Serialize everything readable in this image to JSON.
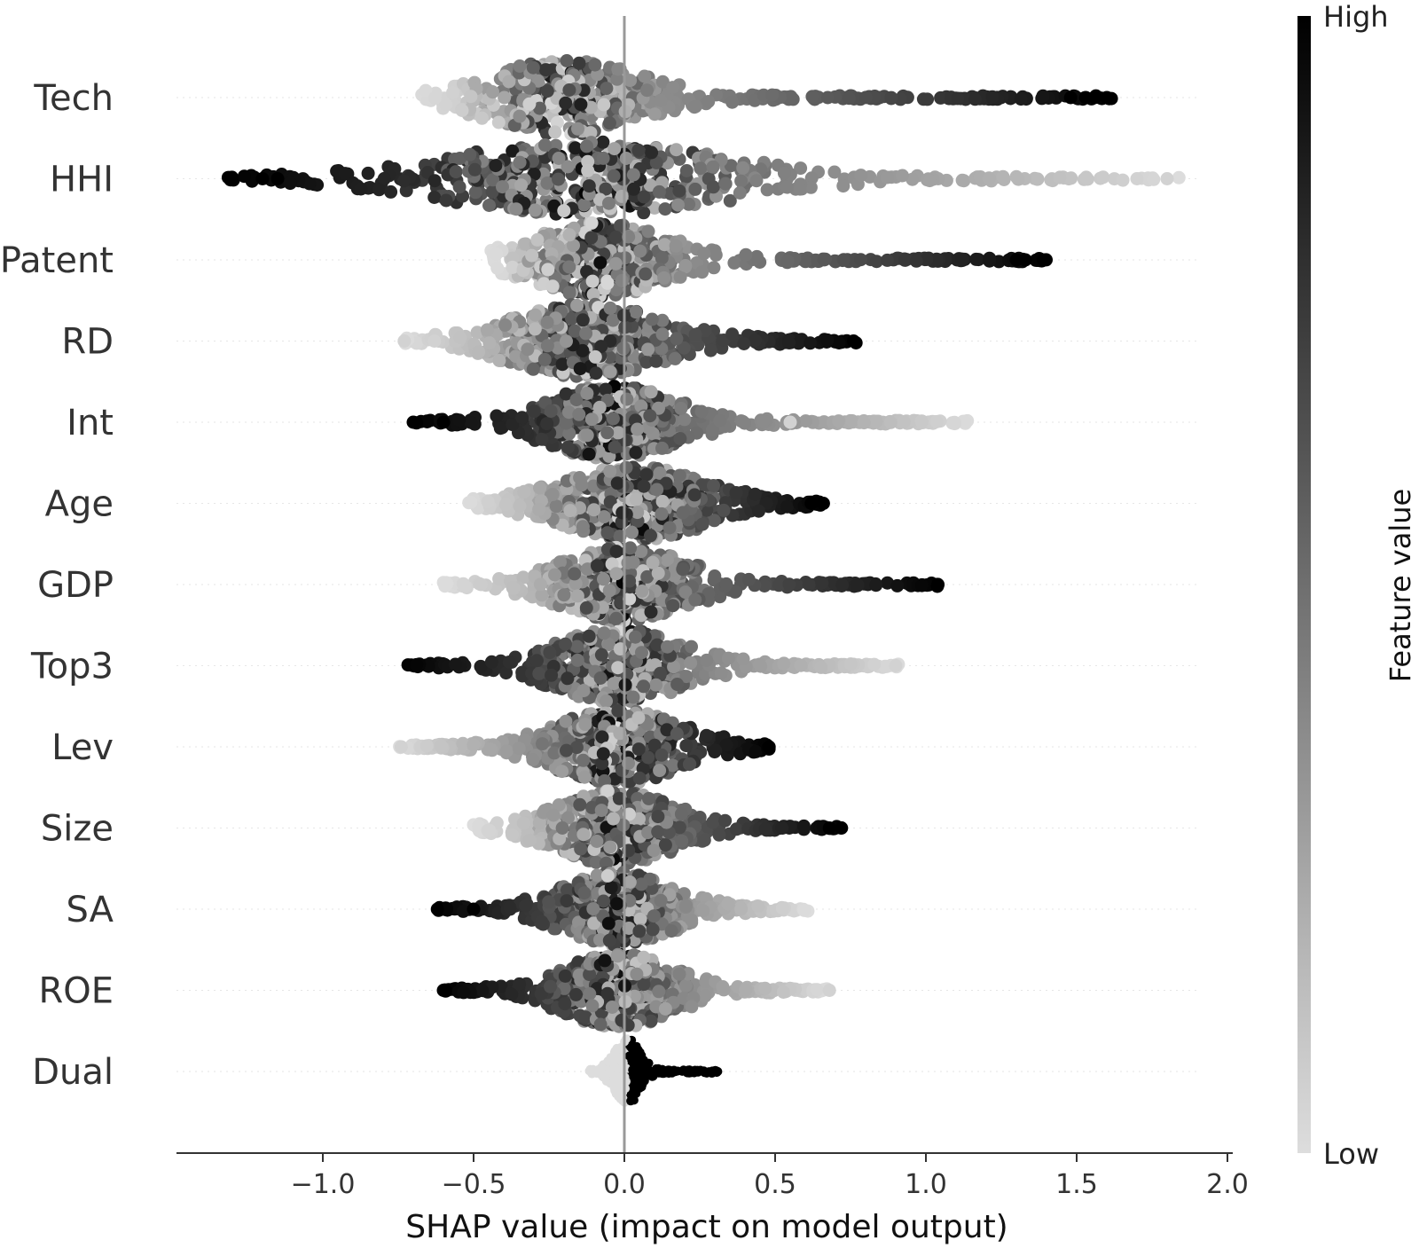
{
  "chart_data": {
    "type": "scatter",
    "subtype": "shap-beeswarm",
    "xlabel": "SHAP value (impact on model output)",
    "xlim": [
      -1.47,
      2.0
    ],
    "xticks": [
      -1.0,
      -0.5,
      0.0,
      0.5,
      1.0,
      1.5,
      2.0
    ],
    "xtick_labels": [
      "−1.0",
      "−0.5",
      "0.0",
      "0.5",
      "1.0",
      "1.5",
      "2.0"
    ],
    "colorbar": {
      "title": "Feature value",
      "high_label": "High",
      "low_label": "Low",
      "high_color": "#000000",
      "low_color": "#dddddd"
    },
    "features": [
      {
        "name": "Tech",
        "min": -0.7,
        "max": 1.62,
        "core": -0.2,
        "spread": 0.18,
        "lowTail": "left",
        "extremes": [
          1.48,
          1.53,
          1.56,
          1.6
        ]
      },
      {
        "name": "HHI",
        "min": -1.32,
        "max": 1.85,
        "core": -0.12,
        "spread": 0.32,
        "lowTail": "right",
        "extremes": [
          -1.15,
          -1.2,
          1.7,
          1.8
        ]
      },
      {
        "name": "Patent",
        "min": -0.45,
        "max": 1.4,
        "core": -0.08,
        "spread": 0.16,
        "lowTail": "left",
        "extremes": [
          1.3,
          1.33,
          1.39
        ]
      },
      {
        "name": "RD",
        "min": -0.73,
        "max": 0.77,
        "core": -0.12,
        "spread": 0.18,
        "lowTail": "left",
        "extremes": [
          -0.73,
          -0.63,
          0.76
        ]
      },
      {
        "name": "Int",
        "min": -0.7,
        "max": 1.15,
        "core": -0.04,
        "spread": 0.15,
        "lowTail": "right",
        "extremes": [
          -0.7,
          -0.6,
          0.55
        ]
      },
      {
        "name": "Age",
        "min": -0.52,
        "max": 0.66,
        "core": 0.03,
        "spread": 0.17,
        "lowTail": "left",
        "extremes": [
          0.62,
          0.66
        ]
      },
      {
        "name": "GDP",
        "min": -0.6,
        "max": 1.04,
        "core": 0.0,
        "spread": 0.15,
        "lowTail": "left",
        "extremes": [
          1.04
        ]
      },
      {
        "name": "Top3",
        "min": -0.73,
        "max": 0.92,
        "core": -0.02,
        "spread": 0.15,
        "lowTail": "right",
        "extremes": [
          0.9
        ]
      },
      {
        "name": "Lev",
        "min": -0.75,
        "max": 0.49,
        "core": -0.02,
        "spread": 0.15,
        "lowTail": "left",
        "extremes": [
          -0.74,
          0.48
        ]
      },
      {
        "name": "Size",
        "min": -0.5,
        "max": 0.72,
        "core": -0.03,
        "spread": 0.14,
        "lowTail": "left",
        "extremes": [
          0.68,
          0.72
        ]
      },
      {
        "name": "SA",
        "min": -0.62,
        "max": 0.61,
        "core": -0.02,
        "spread": 0.13,
        "lowTail": "right",
        "extremes": [
          -0.62,
          -0.5
        ]
      },
      {
        "name": "ROE",
        "min": -0.6,
        "max": 0.68,
        "core": -0.02,
        "spread": 0.13,
        "lowTail": "right",
        "extremes": [
          -0.6,
          0.68
        ]
      },
      {
        "name": "Dual",
        "min": -0.12,
        "max": 0.31,
        "core": 0.01,
        "spread": 0.03,
        "lowTail": "left",
        "extremes": [
          0.31
        ]
      }
    ]
  }
}
